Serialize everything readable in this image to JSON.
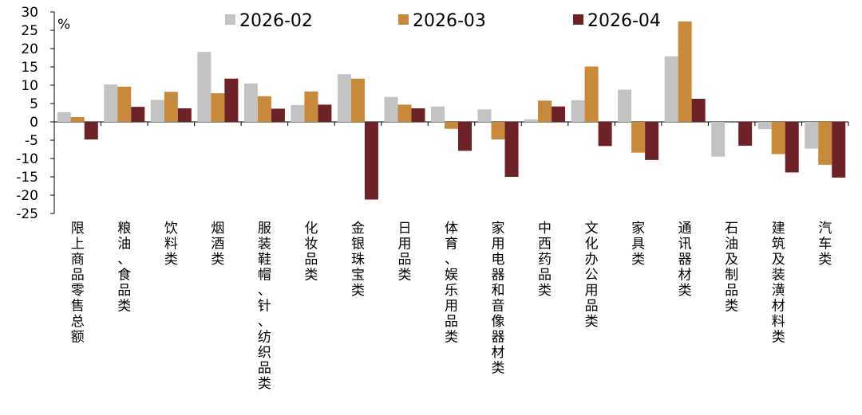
{
  "chart_data": {
    "type": "bar",
    "unit_label": "%",
    "ylim": [
      -25,
      30
    ],
    "yticks": [
      30,
      25,
      20,
      15,
      10,
      5,
      0,
      -5,
      -10,
      -15,
      -20,
      -25
    ],
    "grid": false,
    "legend_position": "top",
    "categories": [
      "限上商品零售总额",
      "粮油、食品类",
      "饮料类",
      "烟酒类",
      "服装鞋帽、针、纺织品类",
      "化妆品类",
      "金银珠宝类",
      "日用品类",
      "体育、娱乐用品类",
      "家用电器和音像器材类",
      "中西药品类",
      "文化办公用品类",
      "家具类",
      "通讯器材类",
      "石油及制品类",
      "建筑及装潢材料类",
      "汽车类"
    ],
    "series": [
      {
        "name": "2026-02",
        "color": "#c3c3c3",
        "values": [
          2.6,
          10.2,
          6.0,
          19.1,
          10.5,
          4.6,
          13.0,
          6.8,
          4.2,
          3.4,
          0.7,
          5.9,
          8.8,
          17.9,
          -9.5,
          -2.0,
          -7.3
        ]
      },
      {
        "name": "2026-03",
        "color": "#c8893a",
        "values": [
          1.3,
          9.6,
          8.2,
          7.8,
          7.0,
          8.3,
          11.8,
          4.7,
          -1.9,
          -4.8,
          5.8,
          15.1,
          -8.4,
          27.4,
          0.0,
          -8.8,
          -11.7
        ]
      },
      {
        "name": "2026-04",
        "color": "#6e2127",
        "values": [
          -4.8,
          4.1,
          3.7,
          11.8,
          3.6,
          4.7,
          -21.2,
          3.7,
          -7.9,
          -15.0,
          4.2,
          -6.6,
          -10.4,
          6.3,
          -6.5,
          -13.8,
          -15.2
        ]
      }
    ]
  }
}
